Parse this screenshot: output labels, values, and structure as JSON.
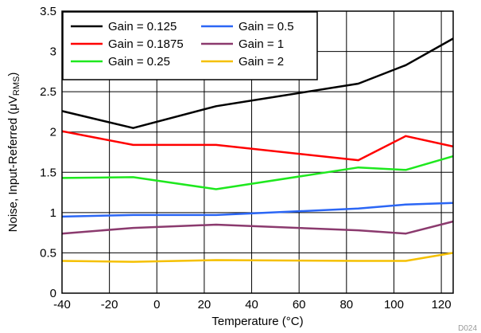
{
  "chart_data": {
    "type": "line",
    "title": "",
    "xlabel": "Temperature (°C)",
    "ylabel": "Noise, Input-Referred (μVRMS)",
    "ylabel_parts": {
      "main": "Noise, Input-Referred (μV",
      "sub": "RMS",
      "end": ")"
    },
    "xlim": [
      -40,
      125
    ],
    "ylim": [
      0,
      3.5
    ],
    "xticks": [
      -40,
      -20,
      0,
      20,
      40,
      60,
      80,
      100,
      120
    ],
    "yticks": [
      0,
      0.5,
      1,
      1.5,
      2,
      2.5,
      3,
      3.5
    ],
    "xtick_labels": [
      "-40",
      "-20",
      "0",
      "20",
      "40",
      "60",
      "80",
      "100",
      "120"
    ],
    "ytick_labels": [
      "0",
      "0.5",
      "1",
      "1.5",
      "2",
      "2.5",
      "3",
      "3.5"
    ],
    "grid": true,
    "legend_position": "top-left",
    "x": [
      -40,
      -10,
      25,
      85,
      105,
      125
    ],
    "series": [
      {
        "name": "Gain = 0.125",
        "color": "#000000",
        "values": [
          2.26,
          2.05,
          2.32,
          2.6,
          2.83,
          3.16
        ]
      },
      {
        "name": "Gain = 0.1875",
        "color": "#ff0000",
        "values": [
          2.01,
          1.84,
          1.84,
          1.65,
          1.95,
          1.82
        ]
      },
      {
        "name": "Gain = 0.25",
        "color": "#1ee81e",
        "values": [
          1.43,
          1.44,
          1.29,
          1.56,
          1.53,
          1.7
        ]
      },
      {
        "name": "Gain = 0.5",
        "color": "#2b66f5",
        "values": [
          0.95,
          0.97,
          0.97,
          1.05,
          1.1,
          1.12
        ]
      },
      {
        "name": "Gain = 1",
        "color": "#8b3a6e",
        "values": [
          0.74,
          0.81,
          0.85,
          0.78,
          0.74,
          0.89
        ]
      },
      {
        "name": "Gain = 2",
        "color": "#f5c000",
        "values": [
          0.4,
          0.39,
          0.41,
          0.4,
          0.4,
          0.5
        ]
      }
    ],
    "figure_code": "D024"
  }
}
